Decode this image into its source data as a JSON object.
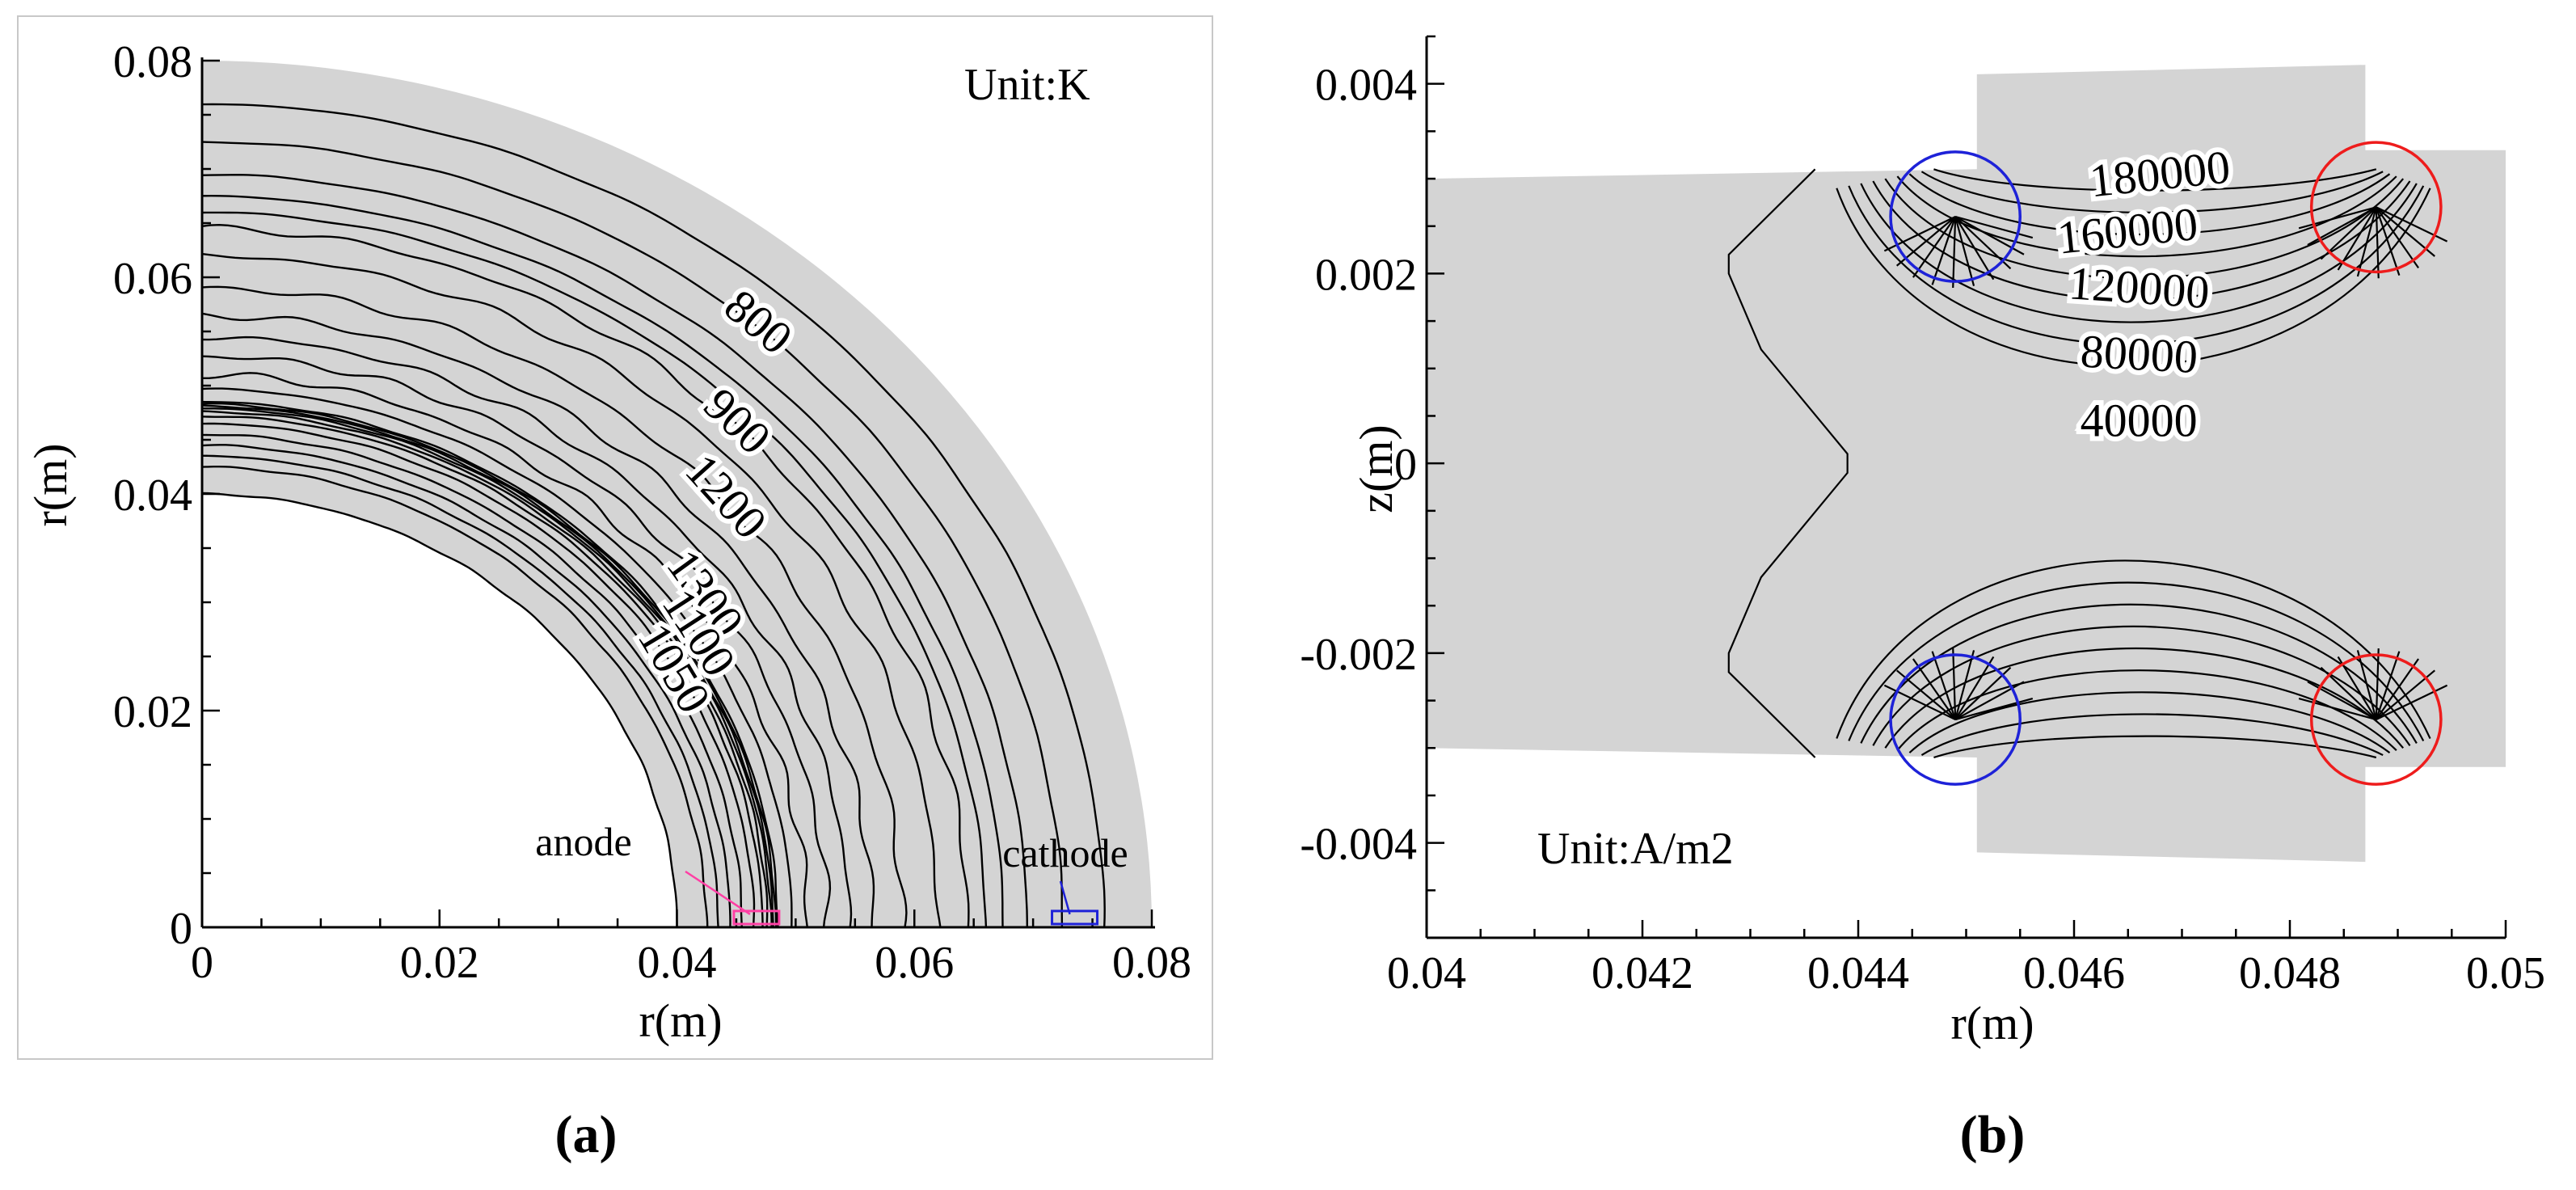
{
  "chart_data": [
    {
      "panel": "(a)",
      "type": "contour",
      "xlabel": "r(m)",
      "ylabel": "r(m)",
      "xlim": [
        0,
        0.08
      ],
      "ylim": [
        0,
        0.08
      ],
      "xticks": [
        "0",
        "0.02",
        "0.04",
        "0.06",
        "0.08"
      ],
      "yticks": [
        "0",
        "0.02",
        "0.04",
        "0.06",
        "0.08"
      ],
      "unit_label": "Unit:K",
      "domain": {
        "inner_radius": 0.04,
        "outer_radius": 0.08
      },
      "contour_radii": [
        0.04,
        0.0425,
        0.0435,
        0.0445,
        0.0455,
        0.0465,
        0.0472,
        0.0476,
        0.0479,
        0.0481,
        0.0483,
        0.0485,
        0.0497,
        0.051,
        0.0527,
        0.0545,
        0.0565,
        0.059,
        0.062,
        0.0645,
        0.066,
        0.0675,
        0.0695,
        0.0725,
        0.076
      ],
      "contour_labels": [
        {
          "text": "800",
          "r": 0.0725,
          "angle_deg": 50
        },
        {
          "text": "900",
          "r": 0.0645,
          "angle_deg": 46
        },
        {
          "text": "1200",
          "r": 0.059,
          "angle_deg": 42
        },
        {
          "text": "1300",
          "r": 0.052,
          "angle_deg": 36
        },
        {
          "text": "1100",
          "r": 0.0495,
          "angle_deg": 33
        },
        {
          "text": "1050",
          "r": 0.046,
          "angle_deg": 31
        }
      ],
      "annotations": [
        {
          "text": "anode",
          "x": 0.0467,
          "y": 0.0008
        },
        {
          "text": "cathode",
          "x": 0.0735,
          "y": 0.0008
        }
      ],
      "colors": {
        "fill": "#d4d4d4",
        "anode": "#ff3fa4",
        "cathode": "#1e22d8"
      }
    },
    {
      "panel": "(b)",
      "type": "contour",
      "xlabel": "r(m)",
      "ylabel": "z(m)",
      "xlim": [
        0.04,
        0.05
      ],
      "ylim": [
        -0.005,
        0.0045
      ],
      "xticks": [
        "0.04",
        "0.042",
        "0.044",
        "0.046",
        "0.048",
        "0.05"
      ],
      "yticks": [
        "-0.004",
        "-0.002",
        "0",
        "0.002",
        "0.004"
      ],
      "unit_label": "Unit:A/m2",
      "contour_labels": [
        {
          "text": "180000",
          "x": 0.0468,
          "y": 0.003
        },
        {
          "text": "160000",
          "x": 0.0465,
          "y": 0.0024
        },
        {
          "text": "120000",
          "x": 0.0466,
          "y": 0.0018
        },
        {
          "text": "80000",
          "x": 0.0466,
          "y": 0.0011
        },
        {
          "text": "40000",
          "x": 0.0466,
          "y": 0.0004
        }
      ],
      "electrodes": [
        {
          "type": "anode",
          "x": 0.0449,
          "y": 0.0026,
          "r": 0.0006
        },
        {
          "type": "cathode",
          "x": 0.0488,
          "y": 0.0027,
          "r": 0.0006
        },
        {
          "type": "anode",
          "x": 0.0449,
          "y": -0.0027,
          "r": 0.0006
        },
        {
          "type": "cathode",
          "x": 0.0488,
          "y": -0.0027,
          "r": 0.0006
        }
      ],
      "colors": {
        "fill": "#d4d4d4",
        "anode": "#1e22d8",
        "cathode": "#ee1c1c"
      }
    }
  ],
  "captions": [
    "(a)",
    "(b)"
  ]
}
